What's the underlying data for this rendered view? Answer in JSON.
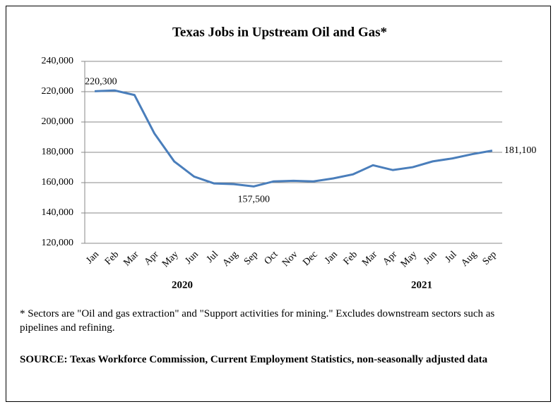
{
  "chart_data": {
    "type": "line",
    "title": "Texas Jobs in Upstream Oil and Gas*",
    "categories": [
      "Jan",
      "Feb",
      "Mar",
      "Apr",
      "May",
      "Jun",
      "Jul",
      "Aug",
      "Sep",
      "Oct",
      "Nov",
      "Dec",
      "Jan",
      "Feb",
      "Mar",
      "Apr",
      "May",
      "Jun",
      "Jul",
      "Aug",
      "Sep"
    ],
    "x_groups": [
      "2020",
      "2021"
    ],
    "values": [
      220300,
      220800,
      217800,
      192500,
      174000,
      164000,
      159500,
      159000,
      157500,
      160800,
      161200,
      160800,
      162800,
      165500,
      171500,
      168300,
      170200,
      174000,
      176000,
      178800,
      181100
    ],
    "value_labels": [
      "220,300",
      null,
      null,
      null,
      null,
      null,
      null,
      null,
      "157,500",
      null,
      null,
      null,
      null,
      null,
      null,
      null,
      null,
      null,
      null,
      null,
      "181,100"
    ],
    "color": "#4a7ebb",
    "ylim": [
      120000,
      240000
    ],
    "yticks": [
      {
        "value": 120000,
        "label": "120,000"
      },
      {
        "value": 140000,
        "label": "140,000"
      },
      {
        "value": 160000,
        "label": "160,000"
      },
      {
        "value": 180000,
        "label": "180,000"
      },
      {
        "value": 200000,
        "label": "200,000"
      },
      {
        "value": 220000,
        "label": "220,000"
      },
      {
        "value": 240000,
        "label": "240,000"
      }
    ],
    "grid": true,
    "footnote": "* Sectors are \"Oil and gas extraction\" and \"Support activities for mining.\"  Excludes downstream sectors such as pipelines and refining.",
    "source": "SOURCE: Texas Workforce Commission, Current Employment Statistics, non-seasonally adjusted data"
  }
}
